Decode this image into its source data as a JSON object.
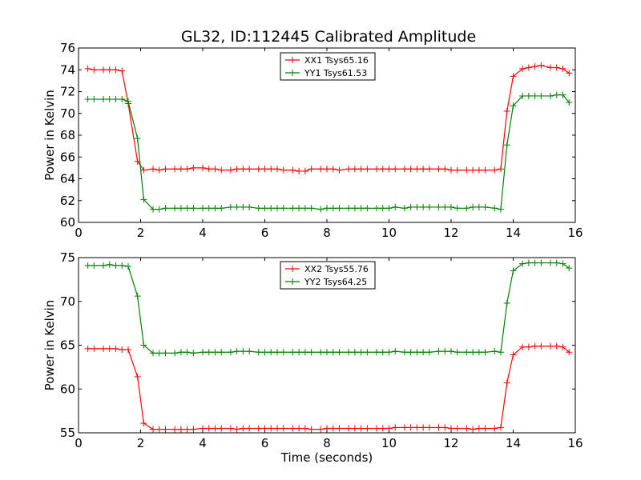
{
  "figure": {
    "title": "GL32, ID:112445 Calibrated Amplitude"
  },
  "chart_data": [
    {
      "type": "line",
      "title": "GL32, ID:112445 Calibrated Amplitude",
      "xlabel": "",
      "ylabel": "Power in Kelvin",
      "xlim": [
        0,
        16
      ],
      "ylim": [
        60,
        76
      ],
      "xticks": [
        "0",
        "2",
        "4",
        "6",
        "8",
        "10",
        "12",
        "14",
        "16"
      ],
      "yticks": [
        "60",
        "62",
        "64",
        "66",
        "68",
        "70",
        "72",
        "74",
        "76"
      ],
      "grid": false,
      "legend_position": "upper center",
      "x": [
        0.3,
        0.5,
        0.8,
        1.0,
        1.2,
        1.4,
        1.6,
        1.9,
        2.1,
        2.4,
        2.6,
        2.8,
        3.1,
        3.3,
        3.5,
        3.7,
        4.0,
        4.2,
        4.4,
        4.6,
        4.9,
        5.1,
        5.3,
        5.5,
        5.8,
        6.0,
        6.2,
        6.4,
        6.6,
        6.9,
        7.1,
        7.3,
        7.5,
        7.8,
        8.0,
        8.2,
        8.4,
        8.7,
        8.9,
        9.1,
        9.3,
        9.6,
        9.8,
        10.0,
        10.2,
        10.5,
        10.7,
        10.9,
        11.1,
        11.3,
        11.6,
        11.8,
        12.0,
        12.2,
        12.5,
        12.7,
        12.9,
        13.1,
        13.4,
        13.6,
        13.8,
        14.0,
        14.3,
        14.5,
        14.7,
        14.9,
        15.2,
        15.4,
        15.6,
        15.8
      ],
      "series": [
        {
          "name": "XX1 Tsys65.16",
          "color": "#ff0000",
          "values": [
            74.1,
            74.0,
            74.0,
            74.0,
            74.0,
            73.9,
            70.9,
            65.6,
            64.8,
            64.9,
            64.8,
            64.9,
            64.9,
            64.9,
            64.9,
            65.0,
            65.0,
            64.9,
            64.9,
            64.8,
            64.8,
            64.9,
            64.9,
            64.9,
            64.9,
            64.9,
            64.9,
            64.9,
            64.8,
            64.8,
            64.7,
            64.7,
            64.9,
            64.9,
            64.9,
            64.9,
            64.8,
            64.9,
            64.9,
            64.9,
            64.9,
            64.9,
            64.9,
            64.9,
            64.9,
            64.9,
            64.9,
            64.9,
            64.9,
            64.9,
            64.9,
            64.9,
            64.8,
            64.8,
            64.8,
            64.8,
            64.8,
            64.8,
            64.8,
            64.9,
            70.2,
            73.4,
            74.1,
            74.2,
            74.3,
            74.4,
            74.2,
            74.2,
            74.1,
            73.7
          ]
        },
        {
          "name": "YY1 Tsys61.53",
          "color": "#008000",
          "values": [
            71.3,
            71.3,
            71.3,
            71.3,
            71.3,
            71.3,
            71.1,
            67.7,
            62.1,
            61.2,
            61.2,
            61.3,
            61.3,
            61.3,
            61.3,
            61.3,
            61.3,
            61.3,
            61.3,
            61.3,
            61.4,
            61.4,
            61.4,
            61.4,
            61.3,
            61.3,
            61.3,
            61.3,
            61.3,
            61.3,
            61.3,
            61.3,
            61.3,
            61.2,
            61.3,
            61.3,
            61.3,
            61.3,
            61.3,
            61.3,
            61.3,
            61.3,
            61.3,
            61.3,
            61.4,
            61.3,
            61.4,
            61.4,
            61.4,
            61.4,
            61.4,
            61.4,
            61.4,
            61.3,
            61.3,
            61.4,
            61.4,
            61.4,
            61.3,
            61.2,
            67.1,
            70.7,
            71.6,
            71.6,
            71.6,
            71.6,
            71.6,
            71.7,
            71.7,
            71.0
          ]
        }
      ]
    },
    {
      "type": "line",
      "title": "",
      "xlabel": "Time (seconds)",
      "ylabel": "Power in Kelvin",
      "xlim": [
        0,
        16
      ],
      "ylim": [
        55,
        75
      ],
      "xticks": [
        "0",
        "2",
        "4",
        "6",
        "8",
        "10",
        "12",
        "14",
        "16"
      ],
      "yticks": [
        "55",
        "60",
        "65",
        "70",
        "75"
      ],
      "grid": false,
      "legend_position": "upper center",
      "x": [
        0.3,
        0.5,
        0.8,
        1.0,
        1.2,
        1.4,
        1.6,
        1.9,
        2.1,
        2.4,
        2.6,
        2.8,
        3.1,
        3.3,
        3.5,
        3.7,
        4.0,
        4.2,
        4.4,
        4.6,
        4.9,
        5.1,
        5.3,
        5.5,
        5.8,
        6.0,
        6.2,
        6.4,
        6.6,
        6.9,
        7.1,
        7.3,
        7.5,
        7.8,
        8.0,
        8.2,
        8.4,
        8.7,
        8.9,
        9.1,
        9.3,
        9.6,
        9.8,
        10.0,
        10.2,
        10.5,
        10.7,
        10.9,
        11.1,
        11.3,
        11.6,
        11.8,
        12.0,
        12.2,
        12.5,
        12.7,
        12.9,
        13.1,
        13.4,
        13.6,
        13.8,
        14.0,
        14.3,
        14.5,
        14.7,
        14.9,
        15.2,
        15.4,
        15.6,
        15.8
      ],
      "series": [
        {
          "name": "XX2 Tsys55.76",
          "color": "#ff0000",
          "values": [
            64.6,
            64.6,
            64.6,
            64.6,
            64.6,
            64.5,
            64.5,
            61.4,
            56.1,
            55.4,
            55.4,
            55.4,
            55.4,
            55.4,
            55.4,
            55.4,
            55.5,
            55.5,
            55.5,
            55.5,
            55.5,
            55.4,
            55.5,
            55.5,
            55.5,
            55.5,
            55.5,
            55.5,
            55.5,
            55.5,
            55.5,
            55.5,
            55.4,
            55.4,
            55.5,
            55.5,
            55.5,
            55.5,
            55.5,
            55.5,
            55.5,
            55.5,
            55.5,
            55.5,
            55.6,
            55.6,
            55.6,
            55.6,
            55.6,
            55.6,
            55.6,
            55.6,
            55.5,
            55.5,
            55.5,
            55.4,
            55.5,
            55.5,
            55.5,
            55.6,
            60.7,
            63.9,
            64.8,
            64.8,
            64.9,
            64.9,
            64.9,
            64.9,
            64.8,
            64.2
          ]
        },
        {
          "name": "YY2 Tsys64.25",
          "color": "#008000",
          "values": [
            74.1,
            74.1,
            74.1,
            74.2,
            74.1,
            74.1,
            74.0,
            70.6,
            65.0,
            64.1,
            64.1,
            64.1,
            64.1,
            64.2,
            64.2,
            64.1,
            64.2,
            64.2,
            64.2,
            64.2,
            64.2,
            64.3,
            64.3,
            64.3,
            64.2,
            64.2,
            64.2,
            64.2,
            64.2,
            64.2,
            64.2,
            64.2,
            64.2,
            64.2,
            64.2,
            64.2,
            64.2,
            64.2,
            64.2,
            64.2,
            64.2,
            64.2,
            64.2,
            64.2,
            64.3,
            64.2,
            64.2,
            64.2,
            64.2,
            64.2,
            64.3,
            64.3,
            64.3,
            64.2,
            64.2,
            64.2,
            64.2,
            64.2,
            64.3,
            64.2,
            69.8,
            73.5,
            74.3,
            74.4,
            74.4,
            74.4,
            74.4,
            74.4,
            74.3,
            73.8
          ]
        }
      ]
    }
  ]
}
